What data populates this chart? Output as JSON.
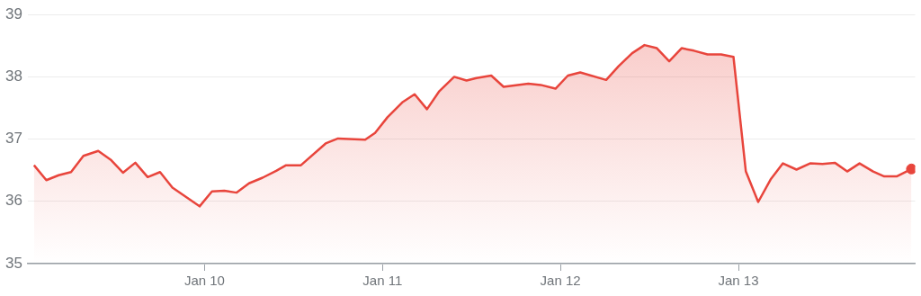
{
  "chart_data": {
    "type": "area",
    "xlim": [
      "--01-09T00:10",
      "--01-13T23:50"
    ],
    "xticks": [
      {
        "value": "--01-10",
        "label": "Jan 10"
      },
      {
        "value": "--01-11",
        "label": "Jan 11"
      },
      {
        "value": "--01-12",
        "label": "Jan 12"
      },
      {
        "value": "--01-13",
        "label": "Jan 13"
      }
    ],
    "ylim": [
      35,
      39
    ],
    "yticks": [
      35,
      36,
      37,
      38,
      39
    ],
    "grid": "y",
    "legend": false,
    "series": [
      {
        "color": "#e8453c",
        "x": [
          "--01-09T01:00",
          "--01-09T02:40",
          "--01-09T04:20",
          "--01-09T06:00",
          "--01-09T07:40",
          "--01-09T09:40",
          "--01-09T11:20",
          "--01-09T13:00",
          "--01-09T14:40",
          "--01-09T16:20",
          "--01-09T18:00",
          "--01-09T19:40",
          "--01-09T23:20",
          "--01-10T01:00",
          "--01-10T02:40",
          "--01-10T04:20",
          "--01-10T06:00",
          "--01-10T07:50",
          "--01-10T09:40",
          "--01-10T11:00",
          "--01-10T13:00",
          "--01-10T16:20",
          "--01-10T18:00",
          "--01-10T21:40",
          "--01-10T23:00",
          "--01-11T00:40",
          "--01-11T02:40",
          "--01-11T04:20",
          "--01-11T06:00",
          "--01-11T07:40",
          "--01-11T09:40",
          "--01-11T11:20",
          "--01-11T12:40",
          "--01-11T14:40",
          "--01-11T16:20",
          "--01-11T19:40",
          "--01-11T21:20",
          "--01-11T23:20",
          "--01-12T01:00",
          "--01-12T02:40",
          "--01-12T06:10",
          "--01-12T07:50",
          "--01-12T09:40",
          "--01-12T11:20",
          "--01-12T13:00",
          "--01-12T14:40",
          "--01-12T16:20",
          "--01-12T18:00",
          "--01-12T19:50",
          "--01-12T21:40",
          "--01-12T23:20",
          "--01-13T01:00",
          "--01-13T02:40",
          "--01-13T04:20",
          "--01-13T06:00",
          "--01-13T07:50",
          "--01-13T09:40",
          "--01-13T11:20",
          "--01-13T13:00",
          "--01-13T14:40",
          "--01-13T16:20",
          "--01-13T18:10",
          "--01-13T19:40",
          "--01-13T21:20",
          "--01-13T23:20"
        ],
        "values": [
          36.58,
          36.34,
          36.42,
          36.47,
          36.73,
          36.81,
          36.67,
          36.46,
          36.62,
          36.39,
          36.47,
          36.22,
          35.92,
          36.16,
          36.17,
          36.14,
          36.29,
          36.38,
          36.49,
          36.58,
          36.58,
          36.93,
          37.01,
          36.99,
          37.1,
          37.35,
          37.59,
          37.72,
          37.48,
          37.77,
          38.0,
          37.94,
          37.98,
          38.02,
          37.84,
          37.89,
          37.87,
          37.81,
          38.02,
          38.07,
          37.95,
          38.17,
          38.38,
          38.51,
          38.46,
          38.25,
          38.46,
          38.42,
          38.36,
          38.36,
          38.32,
          36.48,
          35.99,
          36.35,
          36.61,
          36.51,
          36.61,
          36.6,
          36.62,
          36.48,
          36.61,
          36.48,
          36.4,
          36.4,
          36.52
        ]
      },
      {
        "type": "scatter",
        "color": "#e8453c",
        "marker": "circle",
        "x": [
          "--01-13T23:20"
        ],
        "values": [
          36.52
        ]
      }
    ]
  }
}
